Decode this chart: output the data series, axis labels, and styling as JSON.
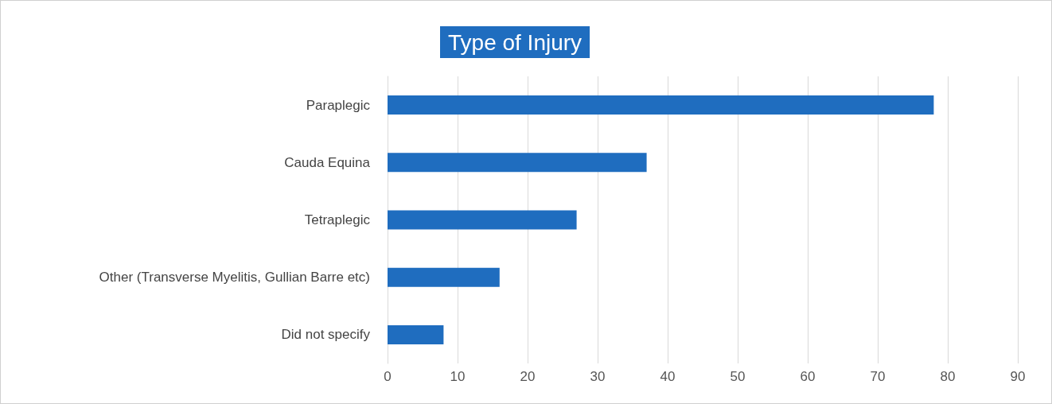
{
  "chart_data": {
    "type": "bar",
    "orientation": "horizontal",
    "title": "Type of Injury",
    "categories": [
      "Paraplegic",
      "Cauda Equina",
      "Tetraplegic",
      "Other (Transverse Myelitis, Gullian Barre etc)",
      "Did not specify"
    ],
    "values": [
      78,
      37,
      27,
      16,
      8
    ],
    "color": "#1f6dbf",
    "xlim": [
      0,
      90
    ],
    "xticks": [
      0,
      10,
      20,
      30,
      40,
      50,
      60,
      70,
      80,
      90
    ],
    "grid": "x"
  }
}
